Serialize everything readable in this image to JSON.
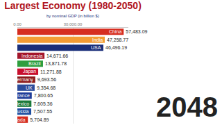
{
  "chart_data": {
    "type": "bar",
    "orientation": "horizontal",
    "title": "Largest Economy (1980-2050)",
    "subtitle": "by nominal GDP (in billion $)",
    "annotation": "2048",
    "categories": [
      "China",
      "India",
      "USA",
      "Indonesia",
      "Brazil",
      "Japan",
      "Germany",
      "UK",
      "France",
      "Mexico",
      "Russia",
      "Canada"
    ],
    "values": [
      57483.09,
      47258.77,
      46496.19,
      14671.66,
      13871.78,
      11271.88,
      9693.56,
      9354.68,
      7800.65,
      7605.36,
      7507.55,
      5704.89
    ],
    "value_labels": [
      "57,483.09",
      "47,258.77",
      "46,496.19",
      "14,671.66",
      "13,871.78",
      "11,271.88",
      "9,693.56",
      "9,354.68",
      "7,800.65",
      "7,605.36",
      "7,507.55",
      "5,704.89"
    ],
    "colors": [
      "#d62d20",
      "#f39c34",
      "#1a2f7a",
      "#a3162b",
      "#2e9e3e",
      "#c8102e",
      "#8b1a1a",
      "#2b4c9b",
      "#1f3d99",
      "#1b7a3a",
      "#1e4fa0",
      "#d52b1e"
    ],
    "xlim": [
      0,
      60000
    ],
    "xticks": [
      {
        "value": 0,
        "label": "0.00"
      },
      {
        "value": 30000,
        "label": "30,000.00"
      }
    ],
    "grid": true,
    "data_labels": true,
    "tick_labels": "x"
  }
}
